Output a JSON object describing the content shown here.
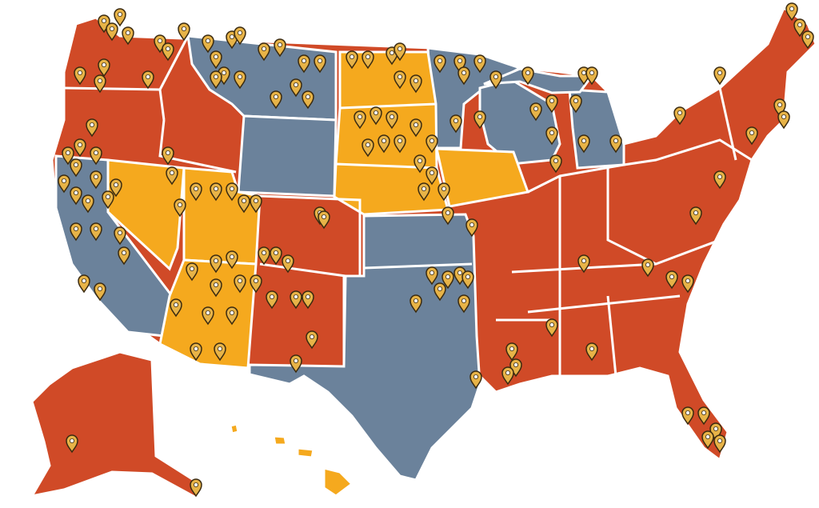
{
  "map": {
    "colors": {
      "red": "#d04a27",
      "blue": "#6b829b",
      "yellow": "#f5a91e",
      "pin": "#e7b347",
      "border": "#ffffff"
    }
  }
}
